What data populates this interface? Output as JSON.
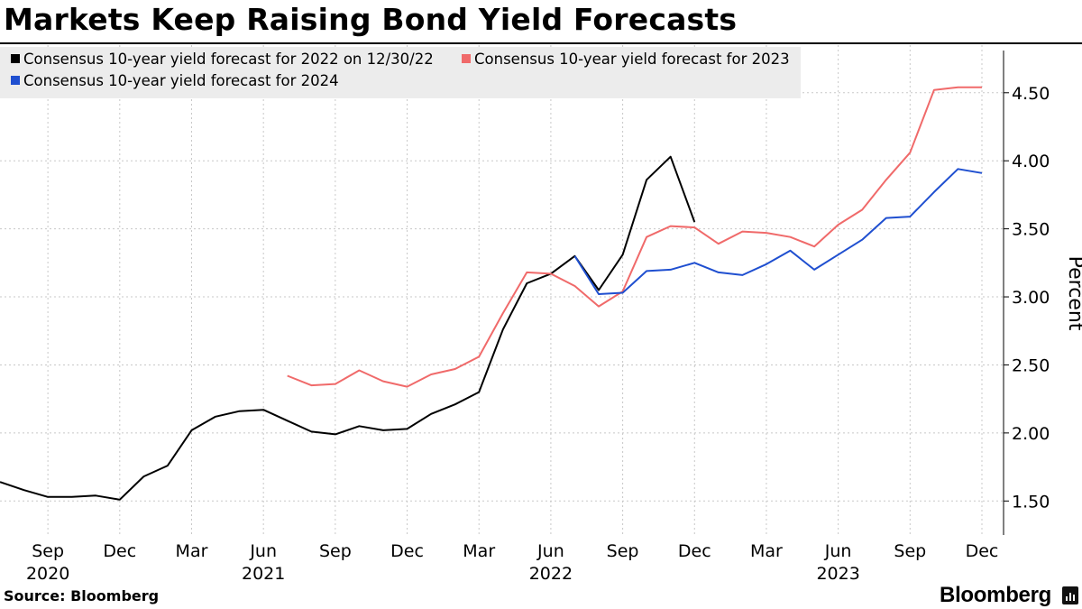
{
  "header": {
    "title": "Markets Keep Raising Bond Yield Forecasts"
  },
  "footer": {
    "source": "Source: Bloomberg",
    "brand": "Bloomberg"
  },
  "chart_data": {
    "type": "line",
    "title": "Markets Keep Raising Bond Yield Forecasts",
    "xlabel": "",
    "ylabel": "Percent",
    "ylim": [
      1.25,
      4.85
    ],
    "y_ticks": [
      1.5,
      2.0,
      2.5,
      3.0,
      3.5,
      4.0,
      4.5
    ],
    "y_tick_labels": [
      "1.50",
      "2.00",
      "2.50",
      "3.00",
      "3.50",
      "4.00",
      "4.50"
    ],
    "y_axis_side": "right",
    "x_range": [
      "2020-07",
      "2023-12"
    ],
    "x_ticks": [
      {
        "date": "2020-09",
        "label": "Sep",
        "year": "2020"
      },
      {
        "date": "2020-12",
        "label": "Dec",
        "year": ""
      },
      {
        "date": "2021-03",
        "label": "Mar",
        "year": ""
      },
      {
        "date": "2021-06",
        "label": "Jun",
        "year": "2021"
      },
      {
        "date": "2021-09",
        "label": "Sep",
        "year": ""
      },
      {
        "date": "2021-12",
        "label": "Dec",
        "year": ""
      },
      {
        "date": "2022-03",
        "label": "Mar",
        "year": ""
      },
      {
        "date": "2022-06",
        "label": "Jun",
        "year": "2022"
      },
      {
        "date": "2022-09",
        "label": "Sep",
        "year": ""
      },
      {
        "date": "2022-12",
        "label": "Dec",
        "year": ""
      },
      {
        "date": "2023-03",
        "label": "Mar",
        "year": ""
      },
      {
        "date": "2023-06",
        "label": "Jun",
        "year": "2023"
      },
      {
        "date": "2023-09",
        "label": "Sep",
        "year": ""
      },
      {
        "date": "2023-12",
        "label": "Dec",
        "year": ""
      }
    ],
    "grid": true,
    "legend_position": "top-left",
    "series": [
      {
        "name": "Consensus 10-year yield forecast for 2022 on 12/30/22",
        "color": "#000000",
        "points": [
          {
            "x": "2020-07",
            "y": 1.64
          },
          {
            "x": "2020-08",
            "y": 1.58
          },
          {
            "x": "2020-09",
            "y": 1.53
          },
          {
            "x": "2020-10",
            "y": 1.53
          },
          {
            "x": "2020-11",
            "y": 1.54
          },
          {
            "x": "2020-12",
            "y": 1.51
          },
          {
            "x": "2021-01",
            "y": 1.68
          },
          {
            "x": "2021-02",
            "y": 1.76
          },
          {
            "x": "2021-03",
            "y": 2.02
          },
          {
            "x": "2021-04",
            "y": 2.12
          },
          {
            "x": "2021-05",
            "y": 2.16
          },
          {
            "x": "2021-06",
            "y": 2.17
          },
          {
            "x": "2021-07",
            "y": 2.09
          },
          {
            "x": "2021-08",
            "y": 2.01
          },
          {
            "x": "2021-09",
            "y": 1.99
          },
          {
            "x": "2021-10",
            "y": 2.05
          },
          {
            "x": "2021-11",
            "y": 2.02
          },
          {
            "x": "2021-12",
            "y": 2.03
          },
          {
            "x": "2022-01",
            "y": 2.14
          },
          {
            "x": "2022-02",
            "y": 2.21
          },
          {
            "x": "2022-03",
            "y": 2.3
          },
          {
            "x": "2022-04",
            "y": 2.76
          },
          {
            "x": "2022-05",
            "y": 3.1
          },
          {
            "x": "2022-06",
            "y": 3.17
          },
          {
            "x": "2022-07",
            "y": 3.3
          },
          {
            "x": "2022-08",
            "y": 3.05
          },
          {
            "x": "2022-09",
            "y": 3.31
          },
          {
            "x": "2022-10",
            "y": 3.86
          },
          {
            "x": "2022-11",
            "y": 4.03
          },
          {
            "x": "2022-12",
            "y": 3.55
          }
        ]
      },
      {
        "name": "Consensus 10-year yield forecast for 2023",
        "color": "#f06a6a",
        "points": [
          {
            "x": "2021-07",
            "y": 2.42
          },
          {
            "x": "2021-08",
            "y": 2.35
          },
          {
            "x": "2021-09",
            "y": 2.36
          },
          {
            "x": "2021-10",
            "y": 2.46
          },
          {
            "x": "2021-11",
            "y": 2.38
          },
          {
            "x": "2021-12",
            "y": 2.34
          },
          {
            "x": "2022-01",
            "y": 2.43
          },
          {
            "x": "2022-02",
            "y": 2.47
          },
          {
            "x": "2022-03",
            "y": 2.56
          },
          {
            "x": "2022-04",
            "y": 2.88
          },
          {
            "x": "2022-05",
            "y": 3.18
          },
          {
            "x": "2022-06",
            "y": 3.17
          },
          {
            "x": "2022-07",
            "y": 3.08
          },
          {
            "x": "2022-08",
            "y": 2.93
          },
          {
            "x": "2022-09",
            "y": 3.04
          },
          {
            "x": "2022-10",
            "y": 3.44
          },
          {
            "x": "2022-11",
            "y": 3.52
          },
          {
            "x": "2022-12",
            "y": 3.51
          },
          {
            "x": "2023-01",
            "y": 3.39
          },
          {
            "x": "2023-02",
            "y": 3.48
          },
          {
            "x": "2023-03",
            "y": 3.47
          },
          {
            "x": "2023-04",
            "y": 3.44
          },
          {
            "x": "2023-05",
            "y": 3.37
          },
          {
            "x": "2023-06",
            "y": 3.53
          },
          {
            "x": "2023-07",
            "y": 3.64
          },
          {
            "x": "2023-08",
            "y": 3.86
          },
          {
            "x": "2023-09",
            "y": 4.06
          },
          {
            "x": "2023-10",
            "y": 4.52
          },
          {
            "x": "2023-11",
            "y": 4.54
          },
          {
            "x": "2023-12",
            "y": 4.54
          }
        ]
      },
      {
        "name": "Consensus 10-year yield forecast for 2024",
        "color": "#1f4fd0",
        "points": [
          {
            "x": "2022-07",
            "y": 3.3
          },
          {
            "x": "2022-08",
            "y": 3.02
          },
          {
            "x": "2022-09",
            "y": 3.03
          },
          {
            "x": "2022-10",
            "y": 3.19
          },
          {
            "x": "2022-11",
            "y": 3.2
          },
          {
            "x": "2022-12",
            "y": 3.25
          },
          {
            "x": "2023-01",
            "y": 3.18
          },
          {
            "x": "2023-02",
            "y": 3.16
          },
          {
            "x": "2023-03",
            "y": 3.24
          },
          {
            "x": "2023-04",
            "y": 3.34
          },
          {
            "x": "2023-05",
            "y": 3.2
          },
          {
            "x": "2023-06",
            "y": 3.31
          },
          {
            "x": "2023-07",
            "y": 3.42
          },
          {
            "x": "2023-08",
            "y": 3.58
          },
          {
            "x": "2023-09",
            "y": 3.59
          },
          {
            "x": "2023-10",
            "y": 3.77
          },
          {
            "x": "2023-11",
            "y": 3.94
          },
          {
            "x": "2023-12",
            "y": 3.91
          }
        ]
      }
    ]
  }
}
